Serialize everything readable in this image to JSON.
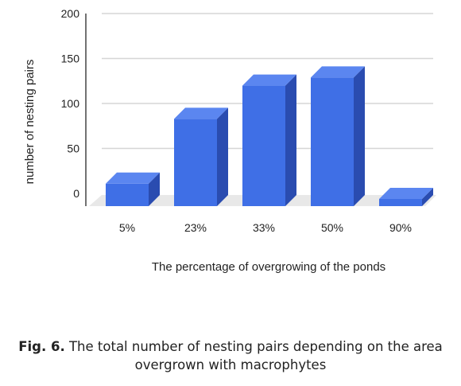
{
  "chart_data": {
    "type": "bar",
    "categories": [
      "5%",
      "23%",
      "33%",
      "50%",
      "90%"
    ],
    "values": [
      25,
      97,
      134,
      143,
      8
    ],
    "ylabel": "number of nesting pairs",
    "xlabel": "The percentage of overgrowing of the ponds",
    "ylim": [
      0,
      200
    ],
    "yticks": [
      0,
      50,
      100,
      150,
      200
    ],
    "grid": true,
    "bar_color": "#3f6fe6",
    "bar_top_color": "#5b86f0",
    "bar_side_color": "#2a4cb0"
  },
  "caption": {
    "label": "Fig. 6.",
    "text": " The total number of nesting pairs depending on the area overgrown with macrophytes"
  }
}
